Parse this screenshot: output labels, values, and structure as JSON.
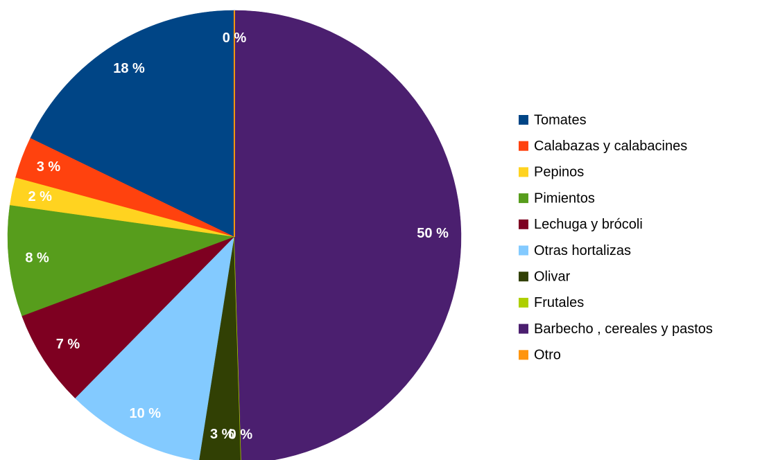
{
  "chart_data": {
    "type": "pie",
    "categories": [
      "Tomates",
      "Calabazas y calabacines",
      "Pepinos",
      "Pimientos",
      "Lechuga y brócoli",
      "Otras hortalizas",
      "Olivar",
      "Frutales",
      "Barbecho ,  cereales y pastos",
      "Otro"
    ],
    "values": [
      18,
      3,
      2,
      8,
      7,
      10,
      3,
      0,
      50,
      0
    ],
    "value_labels": [
      "18 %",
      "3 %",
      "2 %",
      "8 %",
      "7 %",
      "10 %",
      "3 %",
      "0 %",
      "50 %",
      "0 %"
    ],
    "colors": [
      "#004586",
      "#ff420e",
      "#ffd320",
      "#579d1c",
      "#7e0021",
      "#83caff",
      "#314004",
      "#aecf00",
      "#4b1f6f",
      "#ff950e"
    ],
    "legend": "right"
  }
}
